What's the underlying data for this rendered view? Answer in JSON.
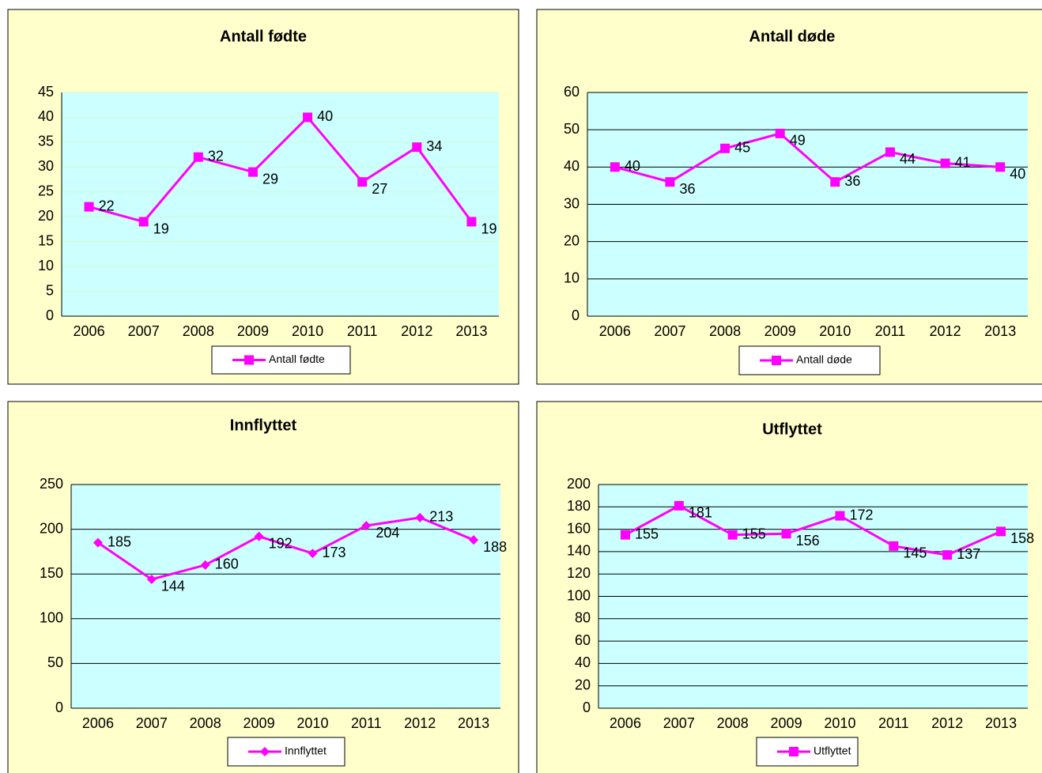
{
  "chart_data": [
    {
      "type": "line",
      "title": "Antall fødte",
      "categories": [
        "2006",
        "2007",
        "2008",
        "2009",
        "2010",
        "2011",
        "2012",
        "2013"
      ],
      "series": [
        {
          "name": "Antall fødte",
          "color": "#ff00ff",
          "values": [
            22,
            19,
            32,
            29,
            40,
            27,
            34,
            19
          ]
        }
      ],
      "ylim": [
        0,
        45
      ],
      "yticks": [
        0,
        5,
        10,
        15,
        20,
        25,
        30,
        35,
        40,
        45
      ],
      "grid": true,
      "grid_color": "#ccffcc",
      "marker": "square"
    },
    {
      "type": "line",
      "title": "Antall døde",
      "categories": [
        "2006",
        "2007",
        "2008",
        "2009",
        "2010",
        "2011",
        "2012",
        "2013"
      ],
      "series": [
        {
          "name": "Antall døde",
          "color": "#ff00ff",
          "values": [
            40,
            36,
            45,
            49,
            36,
            44,
            41,
            40
          ]
        }
      ],
      "ylim": [
        0,
        60
      ],
      "yticks": [
        0,
        10,
        20,
        30,
        40,
        50,
        60
      ],
      "grid": true,
      "grid_color": "#000000",
      "marker": "square"
    },
    {
      "type": "line",
      "title": "Innflyttet",
      "categories": [
        "2006",
        "2007",
        "2008",
        "2009",
        "2010",
        "2011",
        "2012",
        "2013"
      ],
      "series": [
        {
          "name": "Innflyttet",
          "color": "#ff00ff",
          "values": [
            185,
            144,
            160,
            192,
            173,
            204,
            213,
            188
          ]
        }
      ],
      "ylim": [
        0,
        250
      ],
      "yticks": [
        0,
        50,
        100,
        150,
        200,
        250
      ],
      "grid": true,
      "grid_color": "#000000",
      "marker": "diamond"
    },
    {
      "type": "line",
      "title": "Utflyttet",
      "categories": [
        "2006",
        "2007",
        "2008",
        "2009",
        "2010",
        "2011",
        "2012",
        "2013"
      ],
      "series": [
        {
          "name": "Utflyttet",
          "color": "#ff00ff",
          "values": [
            155,
            181,
            155,
            156,
            172,
            145,
            137,
            158
          ]
        }
      ],
      "ylim": [
        0,
        200
      ],
      "yticks": [
        0,
        20,
        40,
        60,
        80,
        100,
        120,
        140,
        160,
        180,
        200
      ],
      "grid": true,
      "grid_color": "#000000",
      "marker": "square"
    }
  ]
}
